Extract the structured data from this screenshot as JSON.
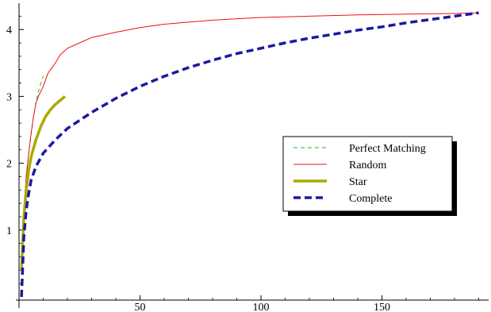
{
  "chart_data": {
    "type": "line",
    "title": "",
    "xlabel": "",
    "ylabel": "",
    "xlim": [
      0,
      192
    ],
    "ylim": [
      0,
      4.3
    ],
    "x_ticks": [
      50,
      100,
      150
    ],
    "y_ticks": [
      1,
      2,
      3,
      4
    ],
    "grid": false,
    "legend_position": "right-middle",
    "series": [
      {
        "name": "Perfect Matching",
        "color": "#33aa33",
        "style": "dashed-thin",
        "points": [
          [
            1,
            0.4
          ],
          [
            2,
            1.3
          ],
          [
            3,
            1.8
          ],
          [
            4,
            2.15
          ],
          [
            5,
            2.45
          ],
          [
            6,
            2.7
          ],
          [
            7,
            2.9
          ],
          [
            8,
            3.07
          ],
          [
            9,
            3.2
          ],
          [
            10,
            3.3
          ]
        ]
      },
      {
        "name": "Random",
        "color": "#ee1111",
        "style": "solid-thin",
        "points": [
          [
            1,
            0.4
          ],
          [
            2,
            1.3
          ],
          [
            3,
            1.8
          ],
          [
            4,
            2.15
          ],
          [
            5,
            2.45
          ],
          [
            6,
            2.7
          ],
          [
            7,
            2.9
          ],
          [
            8,
            3.0
          ],
          [
            10,
            3.15
          ],
          [
            12,
            3.35
          ],
          [
            15,
            3.5
          ],
          [
            17,
            3.62
          ],
          [
            20,
            3.72
          ],
          [
            25,
            3.8
          ],
          [
            30,
            3.88
          ],
          [
            40,
            3.96
          ],
          [
            50,
            4.03
          ],
          [
            60,
            4.08
          ],
          [
            70,
            4.11
          ],
          [
            80,
            4.14
          ],
          [
            100,
            4.18
          ],
          [
            120,
            4.2
          ],
          [
            140,
            4.22
          ],
          [
            160,
            4.23
          ],
          [
            180,
            4.24
          ],
          [
            190,
            4.25
          ]
        ]
      },
      {
        "name": "Star",
        "color": "#aaaa00",
        "style": "solid-thick",
        "points": [
          [
            1,
            0.4
          ],
          [
            2,
            1.2
          ],
          [
            3,
            1.6
          ],
          [
            4,
            1.9
          ],
          [
            5,
            2.1
          ],
          [
            7,
            2.35
          ],
          [
            9,
            2.55
          ],
          [
            11,
            2.7
          ],
          [
            13,
            2.8
          ],
          [
            15,
            2.88
          ],
          [
            17,
            2.94
          ],
          [
            19,
            3.0
          ]
        ]
      },
      {
        "name": "Complete",
        "color": "#1a1aa0",
        "style": "dashed-thick",
        "points": [
          [
            1,
            0.0
          ],
          [
            2,
            0.9
          ],
          [
            3,
            1.3
          ],
          [
            4,
            1.55
          ],
          [
            5,
            1.75
          ],
          [
            7,
            1.95
          ],
          [
            10,
            2.15
          ],
          [
            15,
            2.35
          ],
          [
            20,
            2.52
          ],
          [
            30,
            2.76
          ],
          [
            40,
            2.97
          ],
          [
            50,
            3.15
          ],
          [
            60,
            3.3
          ],
          [
            70,
            3.43
          ],
          [
            80,
            3.54
          ],
          [
            90,
            3.64
          ],
          [
            100,
            3.72
          ],
          [
            110,
            3.8
          ],
          [
            120,
            3.87
          ],
          [
            130,
            3.93
          ],
          [
            140,
            3.99
          ],
          [
            150,
            4.04
          ],
          [
            160,
            4.1
          ],
          [
            170,
            4.15
          ],
          [
            180,
            4.2
          ],
          [
            190,
            4.25
          ]
        ]
      }
    ]
  }
}
